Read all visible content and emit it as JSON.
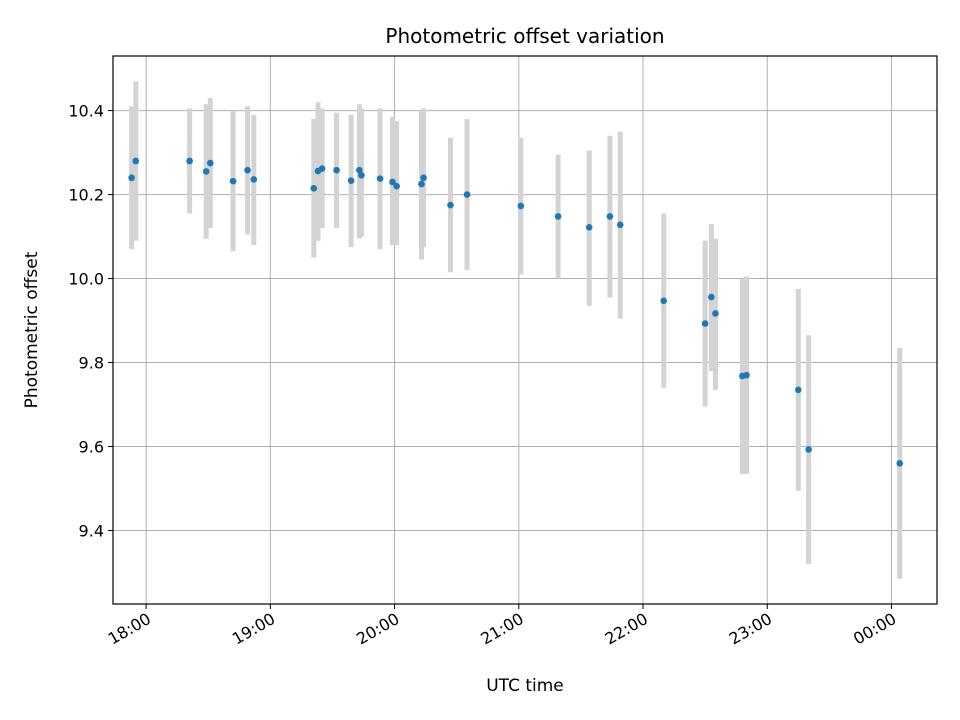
{
  "chart_data": {
    "type": "scatter",
    "title": "Photometric offset variation",
    "xlabel": "UTC time",
    "ylabel": "Photometric offset",
    "grid": true,
    "xlim": [
      "17:44",
      "00:22"
    ],
    "ylim": [
      9.225,
      10.53
    ],
    "xticks": [
      "18:00",
      "19:00",
      "20:00",
      "21:00",
      "22:00",
      "23:00",
      "00:00"
    ],
    "yticks": [
      9.4,
      9.6,
      9.8,
      10.0,
      10.2,
      10.4
    ],
    "ytick_labels": [
      "9.4",
      "9.6",
      "9.8",
      "10.0",
      "10.2",
      "10.4"
    ],
    "colors": {
      "marker": "#1f77b4",
      "errorbar": "#d3d3d3",
      "grid": "#b0b0b0"
    },
    "points": [
      {
        "time": "17:53",
        "y": 10.24,
        "lo": 10.07,
        "hi": 10.41
      },
      {
        "time": "17:55",
        "y": 10.28,
        "lo": 10.09,
        "hi": 10.47
      },
      {
        "time": "18:21",
        "y": 10.28,
        "lo": 10.155,
        "hi": 10.405
      },
      {
        "time": "18:29",
        "y": 10.255,
        "lo": 10.095,
        "hi": 10.415
      },
      {
        "time": "18:31",
        "y": 10.275,
        "lo": 10.12,
        "hi": 10.43
      },
      {
        "time": "18:42",
        "y": 10.232,
        "lo": 10.065,
        "hi": 10.4
      },
      {
        "time": "18:49",
        "y": 10.258,
        "lo": 10.105,
        "hi": 10.41
      },
      {
        "time": "18:52",
        "y": 10.236,
        "lo": 10.08,
        "hi": 10.39
      },
      {
        "time": "19:21",
        "y": 10.215,
        "lo": 10.05,
        "hi": 10.38
      },
      {
        "time": "19:23",
        "y": 10.256,
        "lo": 10.09,
        "hi": 10.42
      },
      {
        "time": "19:25",
        "y": 10.262,
        "lo": 10.12,
        "hi": 10.405
      },
      {
        "time": "19:32",
        "y": 10.258,
        "lo": 10.12,
        "hi": 10.395
      },
      {
        "time": "19:39",
        "y": 10.233,
        "lo": 10.075,
        "hi": 10.39
      },
      {
        "time": "19:43",
        "y": 10.258,
        "lo": 10.095,
        "hi": 10.415
      },
      {
        "time": "19:44",
        "y": 10.246,
        "lo": 10.1,
        "hi": 10.405
      },
      {
        "time": "19:53",
        "y": 10.238,
        "lo": 10.07,
        "hi": 10.405
      },
      {
        "time": "19:59",
        "y": 10.23,
        "lo": 10.08,
        "hi": 10.385
      },
      {
        "time": "20:01",
        "y": 10.22,
        "lo": 10.08,
        "hi": 10.375
      },
      {
        "time": "20:13",
        "y": 10.225,
        "lo": 10.045,
        "hi": 10.4
      },
      {
        "time": "20:14",
        "y": 10.24,
        "lo": 10.075,
        "hi": 10.405
      },
      {
        "time": "20:27",
        "y": 10.175,
        "lo": 10.015,
        "hi": 10.335
      },
      {
        "time": "20:35",
        "y": 10.2,
        "lo": 10.02,
        "hi": 10.38
      },
      {
        "time": "21:01",
        "y": 10.173,
        "lo": 10.01,
        "hi": 10.335
      },
      {
        "time": "21:19",
        "y": 10.148,
        "lo": 10.0,
        "hi": 10.295
      },
      {
        "time": "21:34",
        "y": 10.122,
        "lo": 9.935,
        "hi": 10.305
      },
      {
        "time": "21:44",
        "y": 10.148,
        "lo": 9.955,
        "hi": 10.34
      },
      {
        "time": "21:49",
        "y": 10.128,
        "lo": 9.905,
        "hi": 10.35
      },
      {
        "time": "22:10",
        "y": 9.947,
        "lo": 9.74,
        "hi": 10.155
      },
      {
        "time": "22:30",
        "y": 9.893,
        "lo": 9.695,
        "hi": 10.09
      },
      {
        "time": "22:33",
        "y": 9.956,
        "lo": 9.78,
        "hi": 10.13
      },
      {
        "time": "22:35",
        "y": 9.917,
        "lo": 9.735,
        "hi": 10.095
      },
      {
        "time": "22:48",
        "y": 9.768,
        "lo": 9.535,
        "hi": 10.0
      },
      {
        "time": "22:50",
        "y": 9.77,
        "lo": 9.535,
        "hi": 10.005
      },
      {
        "time": "23:15",
        "y": 9.735,
        "lo": 9.495,
        "hi": 9.975
      },
      {
        "time": "23:20",
        "y": 9.593,
        "lo": 9.32,
        "hi": 9.865
      },
      {
        "time": "00:04",
        "y": 9.56,
        "lo": 9.285,
        "hi": 9.835
      }
    ]
  }
}
